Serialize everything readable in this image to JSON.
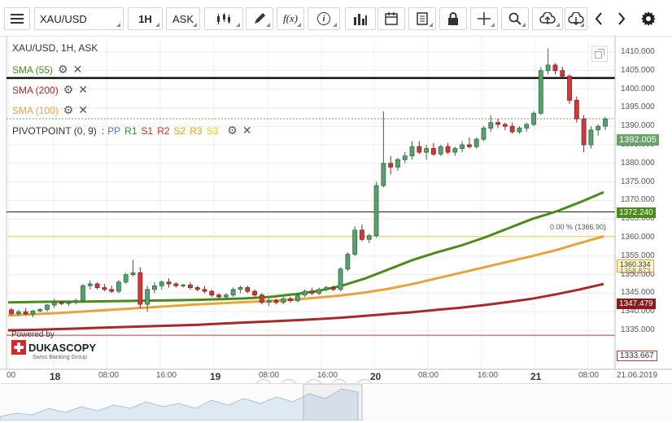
{
  "toolbar": {
    "symbol": "XAU/USD",
    "timeframe": "1H",
    "side": "ASK",
    "fx_label": "f(x)",
    "info_label": "i"
  },
  "legend": {
    "title": "XAU/USD, 1H, ASK",
    "sma55": "SMA (55)",
    "sma200": "SMA (200)",
    "sma100": "SMA (100)",
    "pivot": "PIVOTPOINT (0, 9)",
    "pivot_sep": ":",
    "pivot_parts": [
      {
        "label": "PP",
        "color": "#3a7bd5"
      },
      {
        "label": "R1",
        "color": "#2e8b2e"
      },
      {
        "label": "S1",
        "color": "#d9262a"
      },
      {
        "label": "R2",
        "color": "#d9262a"
      },
      {
        "label": "S2",
        "color": "#f0a000"
      },
      {
        "label": "R3",
        "color": "#f0a000"
      },
      {
        "label": "S3",
        "color": "#f0c800"
      }
    ],
    "colors": {
      "sma55": "#4a8c1c",
      "sma200": "#a52a2a",
      "sma100": "#e8a33c"
    }
  },
  "price_axis": {
    "ticks": [
      "1410.000",
      "1405.000",
      "1400.000",
      "1395.000",
      "1390.000",
      "1385.000",
      "1380.000",
      "1375.000",
      "1370.000",
      "1365.000",
      "1360.000",
      "1355.000",
      "1350.000",
      "1345.000",
      "1340.000",
      "1335.000"
    ],
    "current": "1392.005",
    "sma55_value": "1372.240",
    "sma100_value": "1360.334",
    "sma100_value_alt": "1358.873",
    "sma200_value": "1347.479",
    "low_level": "1333.667"
  },
  "fib_label": "0.00 % (1366.90)",
  "time_axis": {
    "labels": [
      "00",
      "18",
      "08:00",
      "16:00",
      "19",
      "08:00",
      "16:00",
      "20",
      "08:00",
      "16:00",
      "21",
      "08:00",
      "21.06.2019"
    ]
  },
  "watermark": {
    "powered_by": "Powered by",
    "brand": "DUKASCOPY",
    "sub": "Swiss Banking Group"
  },
  "chart_data": {
    "type": "candlestick",
    "symbol": "XAU/USD",
    "interval": "1H",
    "ylim": [
      1333,
      1415
    ],
    "candles": [
      [
        1340.5,
        1341.0,
        1339.0,
        1339.5
      ],
      [
        1339.5,
        1340.5,
        1338.8,
        1340.0
      ],
      [
        1340.0,
        1341.0,
        1339.0,
        1339.4
      ],
      [
        1339.4,
        1340.5,
        1338.5,
        1340.2
      ],
      [
        1340.2,
        1341.0,
        1339.8,
        1340.6
      ],
      [
        1340.6,
        1342.0,
        1340.0,
        1341.8
      ],
      [
        1341.8,
        1343.5,
        1341.0,
        1342.5
      ],
      [
        1342.5,
        1343.0,
        1341.8,
        1342.2
      ],
      [
        1342.2,
        1343.0,
        1341.5,
        1342.6
      ],
      [
        1342.6,
        1343.5,
        1342.0,
        1343.0
      ],
      [
        1343.0,
        1347.5,
        1342.5,
        1347.0
      ],
      [
        1347.0,
        1348.5,
        1346.0,
        1347.5
      ],
      [
        1347.5,
        1348.0,
        1346.0,
        1346.5
      ],
      [
        1346.5,
        1347.5,
        1345.5,
        1346.0
      ],
      [
        1346.0,
        1347.0,
        1345.0,
        1345.5
      ],
      [
        1345.5,
        1348.5,
        1345.0,
        1348.0
      ],
      [
        1348.0,
        1350.5,
        1347.5,
        1350.0
      ],
      [
        1350.0,
        1354.0,
        1349.5,
        1350.5
      ],
      [
        1350.5,
        1352.0,
        1341.0,
        1342.0
      ],
      [
        1342.0,
        1347.0,
        1340.0,
        1346.0
      ],
      [
        1346.0,
        1348.0,
        1345.0,
        1347.0
      ],
      [
        1347.0,
        1348.5,
        1346.0,
        1348.0
      ],
      [
        1348.0,
        1349.0,
        1346.5,
        1347.5
      ],
      [
        1347.5,
        1348.0,
        1346.5,
        1347.0
      ],
      [
        1347.0,
        1347.5,
        1346.5,
        1347.2
      ],
      [
        1347.2,
        1348.0,
        1346.0,
        1346.5
      ],
      [
        1346.5,
        1347.0,
        1345.5,
        1346.0
      ],
      [
        1346.0,
        1347.0,
        1345.0,
        1345.5
      ],
      [
        1345.5,
        1346.0,
        1344.0,
        1344.5
      ],
      [
        1344.5,
        1345.0,
        1343.5,
        1344.0
      ],
      [
        1344.0,
        1345.0,
        1343.5,
        1344.5
      ],
      [
        1344.5,
        1346.5,
        1344.0,
        1346.0
      ],
      [
        1346.0,
        1347.0,
        1345.0,
        1346.5
      ],
      [
        1346.5,
        1347.0,
        1345.0,
        1345.5
      ],
      [
        1345.5,
        1346.0,
        1344.0,
        1344.5
      ],
      [
        1344.5,
        1345.0,
        1342.0,
        1342.5
      ],
      [
        1342.5,
        1343.5,
        1341.5,
        1343.0
      ],
      [
        1343.0,
        1343.5,
        1342.0,
        1342.5
      ],
      [
        1342.5,
        1344.0,
        1342.0,
        1343.5
      ],
      [
        1343.5,
        1344.0,
        1342.5,
        1343.0
      ],
      [
        1343.0,
        1345.0,
        1342.5,
        1344.5
      ],
      [
        1344.5,
        1346.0,
        1344.0,
        1345.5
      ],
      [
        1345.5,
        1346.5,
        1344.5,
        1345.0
      ],
      [
        1345.0,
        1346.5,
        1344.5,
        1346.0
      ],
      [
        1346.0,
        1347.0,
        1345.5,
        1346.5
      ],
      [
        1346.5,
        1347.0,
        1345.5,
        1346.0
      ],
      [
        1346.0,
        1352.0,
        1345.5,
        1351.5
      ],
      [
        1351.5,
        1356.0,
        1351.0,
        1355.5
      ],
      [
        1355.5,
        1363.0,
        1355.0,
        1362.0
      ],
      [
        1362.0,
        1363.5,
        1359.0,
        1359.5
      ],
      [
        1359.5,
        1361.0,
        1358.5,
        1360.5
      ],
      [
        1360.5,
        1375.0,
        1360.0,
        1374.0
      ],
      [
        1374.0,
        1394.0,
        1373.5,
        1380.0
      ],
      [
        1380.0,
        1382.0,
        1377.0,
        1379.0
      ],
      [
        1379.0,
        1381.5,
        1378.0,
        1381.0
      ],
      [
        1381.0,
        1383.0,
        1380.0,
        1382.0
      ],
      [
        1382.0,
        1386.0,
        1381.0,
        1384.5
      ],
      [
        1384.5,
        1386.0,
        1382.5,
        1383.0
      ],
      [
        1383.0,
        1385.0,
        1381.0,
        1384.0
      ],
      [
        1384.0,
        1385.5,
        1382.0,
        1382.5
      ],
      [
        1382.5,
        1385.0,
        1382.0,
        1384.5
      ],
      [
        1384.5,
        1385.5,
        1382.5,
        1383.0
      ],
      [
        1383.0,
        1384.5,
        1382.0,
        1384.0
      ],
      [
        1384.0,
        1386.0,
        1383.0,
        1385.0
      ],
      [
        1385.0,
        1387.0,
        1384.0,
        1384.5
      ],
      [
        1384.5,
        1387.0,
        1384.0,
        1386.5
      ],
      [
        1386.5,
        1390.0,
        1386.0,
        1389.5
      ],
      [
        1389.5,
        1393.0,
        1388.5,
        1391.0
      ],
      [
        1391.0,
        1392.0,
        1389.5,
        1390.5
      ],
      [
        1390.5,
        1391.0,
        1389.0,
        1390.0
      ],
      [
        1390.0,
        1391.0,
        1388.0,
        1388.5
      ],
      [
        1388.5,
        1390.0,
        1388.0,
        1389.5
      ],
      [
        1389.5,
        1391.0,
        1388.5,
        1390.5
      ],
      [
        1390.5,
        1394.0,
        1390.0,
        1393.5
      ],
      [
        1393.5,
        1406.0,
        1393.0,
        1405.0
      ],
      [
        1405.0,
        1411.0,
        1404.0,
        1406.5
      ],
      [
        1406.5,
        1407.0,
        1404.0,
        1405.0
      ],
      [
        1405.0,
        1406.0,
        1403.0,
        1403.5
      ],
      [
        1403.5,
        1404.0,
        1396.0,
        1397.0
      ],
      [
        1397.0,
        1398.0,
        1391.0,
        1392.0
      ],
      [
        1392.0,
        1393.0,
        1383.0,
        1385.0
      ],
      [
        1385.0,
        1390.0,
        1384.0,
        1389.0
      ],
      [
        1389.0,
        1390.5,
        1387.5,
        1390.0
      ],
      [
        1390.0,
        1392.5,
        1389.0,
        1392.0
      ]
    ],
    "sma55": [
      1342.5,
      1342.6,
      1342.7,
      1342.7,
      1342.8,
      1342.9,
      1343.0,
      1343.1,
      1343.2,
      1343.4,
      1343.6,
      1344.0,
      1344.7,
      1345.6,
      1347.0,
      1349.0,
      1351.5,
      1354.0,
      1356.0,
      1357.8,
      1360.0,
      1362.5,
      1365.0,
      1367.0,
      1369.5,
      1372.24
    ],
    "sma100": [
      1339.0,
      1339.3,
      1339.6,
      1340.0,
      1340.4,
      1340.8,
      1341.2,
      1341.6,
      1342.0,
      1342.3,
      1342.6,
      1342.9,
      1343.3,
      1343.8,
      1344.4,
      1345.2,
      1346.2,
      1347.5,
      1349.0,
      1350.5,
      1352.0,
      1353.5,
      1355.0,
      1356.6,
      1358.5,
      1360.334
    ],
    "sma200": [
      1335.0,
      1335.1,
      1335.3,
      1335.5,
      1335.7,
      1335.9,
      1336.1,
      1336.3,
      1336.5,
      1336.8,
      1337.1,
      1337.4,
      1337.7,
      1338.0,
      1338.4,
      1338.9,
      1339.4,
      1339.9,
      1340.5,
      1341.1,
      1341.8,
      1342.6,
      1343.5,
      1344.7,
      1346.0,
      1347.479
    ],
    "horizontal_levels": {
      "resistance": 1403.0,
      "fib_0": 1366.9,
      "current_price": 1392.005,
      "support_sma100": 1360.334,
      "low": 1333.667
    }
  }
}
